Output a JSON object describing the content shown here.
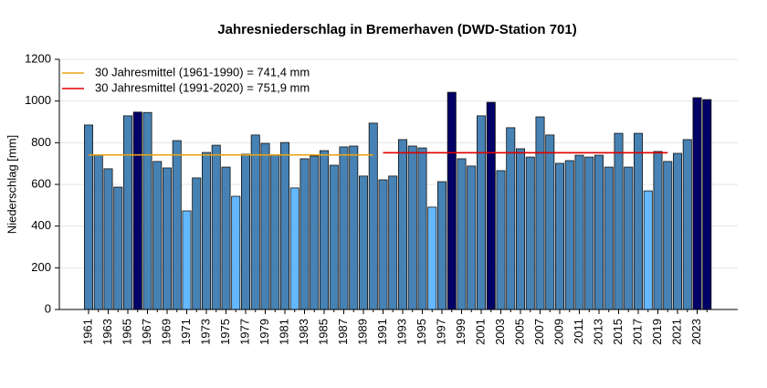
{
  "chart_data": {
    "type": "bar",
    "title": "Jahresniederschlag in Bremerhaven (DWD-Station 701)",
    "y_label": "Niederschlag [mm]",
    "categories": [
      "1961",
      null,
      "1963",
      null,
      "1965",
      null,
      "1967",
      null,
      "1969",
      null,
      "1971",
      null,
      "1973",
      null,
      "1975",
      null,
      "1977",
      null,
      "1979",
      null,
      "1981",
      null,
      "1983",
      null,
      "1985",
      null,
      "1987",
      null,
      "1989",
      null,
      "1991",
      null,
      "1993",
      null,
      "1995",
      null,
      "1997",
      null,
      "1999",
      null,
      "2001",
      null,
      "2003",
      null,
      "2005",
      null,
      "2007",
      null,
      "2009",
      null,
      "2011",
      null,
      "2013",
      null,
      "2015",
      null,
      "2017",
      null,
      "2019",
      null,
      "2021",
      null,
      "2023",
      null
    ],
    "values": [
      885,
      740,
      675,
      587,
      929,
      947,
      945,
      710,
      679,
      810,
      473,
      631,
      753,
      788,
      683,
      543,
      745,
      837,
      797,
      740,
      801,
      583,
      723,
      736,
      762,
      692,
      780,
      784,
      640,
      894,
      622,
      640,
      815,
      784,
      775,
      491,
      613,
      1042,
      723,
      688,
      929,
      994,
      666,
      872,
      771,
      731,
      924,
      837,
      701,
      714,
      740,
      731,
      740,
      683,
      845,
      683,
      845,
      569,
      758,
      710,
      749,
      815,
      1016,
      1007
    ],
    "colors": [
      "#4682b4",
      "#4682b4",
      "#4682b4",
      "#4682b4",
      "#4682b4",
      "#000066",
      "#4682b4",
      "#4682b4",
      "#4682b4",
      "#4682b4",
      "#63b8ff",
      "#4682b4",
      "#4682b4",
      "#4682b4",
      "#4682b4",
      "#63b8ff",
      "#4682b4",
      "#4682b4",
      "#4682b4",
      "#4682b4",
      "#4682b4",
      "#63b8ff",
      "#4682b4",
      "#4682b4",
      "#4682b4",
      "#4682b4",
      "#4682b4",
      "#4682b4",
      "#4682b4",
      "#4682b4",
      "#4682b4",
      "#4682b4",
      "#4682b4",
      "#4682b4",
      "#4682b4",
      "#63b8ff",
      "#4682b4",
      "#000066",
      "#4682b4",
      "#4682b4",
      "#4682b4",
      "#000066",
      "#4682b4",
      "#4682b4",
      "#4682b4",
      "#4682b4",
      "#4682b4",
      "#4682b4",
      "#4682b4",
      "#4682b4",
      "#4682b4",
      "#4682b4",
      "#4682b4",
      "#4682b4",
      "#4682b4",
      "#4682b4",
      "#4682b4",
      "#63b8ff",
      "#4682b4",
      "#4682b4",
      "#4682b4",
      "#4682b4",
      "#000066",
      "#000066"
    ],
    "lines": [
      {
        "name": "30 Jahresmittel (1961-1990) = 741,4 mm",
        "color": "#e8a317",
        "values": [
          741.4,
          741.4,
          741.4,
          741.4,
          741.4,
          741.4,
          741.4,
          741.4,
          741.4,
          741.4,
          741.4,
          741.4,
          741.4,
          741.4,
          741.4,
          741.4,
          741.4,
          741.4,
          741.4,
          741.4,
          741.4,
          741.4,
          741.4,
          741.4,
          741.4,
          741.4,
          741.4,
          741.4,
          741.4,
          741.4,
          null,
          null,
          null,
          null,
          null,
          null,
          null,
          null,
          null,
          null,
          null,
          null,
          null,
          null,
          null,
          null,
          null,
          null,
          null,
          null,
          null,
          null,
          null,
          null,
          null,
          null,
          null,
          null,
          null,
          null,
          null,
          null,
          null,
          null
        ]
      },
      {
        "name": "30 Jahresmittel (1991-2020) = 751,9 mm",
        "color": "#e00000",
        "values": [
          null,
          null,
          null,
          null,
          null,
          null,
          null,
          null,
          null,
          null,
          null,
          null,
          null,
          null,
          null,
          null,
          null,
          null,
          null,
          null,
          null,
          null,
          null,
          null,
          null,
          null,
          null,
          null,
          null,
          null,
          751.9,
          751.9,
          751.9,
          751.9,
          751.9,
          751.9,
          751.9,
          751.9,
          751.9,
          751.9,
          751.9,
          751.9,
          751.9,
          751.9,
          751.9,
          751.9,
          751.9,
          751.9,
          751.9,
          751.9,
          751.9,
          751.9,
          751.9,
          751.9,
          751.9,
          751.9,
          751.9,
          751.9,
          751.9,
          751.9,
          null,
          null,
          null,
          null
        ]
      }
    ],
    "ylim": [
      0,
      1200
    ],
    "yticks": [
      0,
      200,
      400,
      600,
      800,
      1000,
      1200
    ],
    "grid": true
  }
}
